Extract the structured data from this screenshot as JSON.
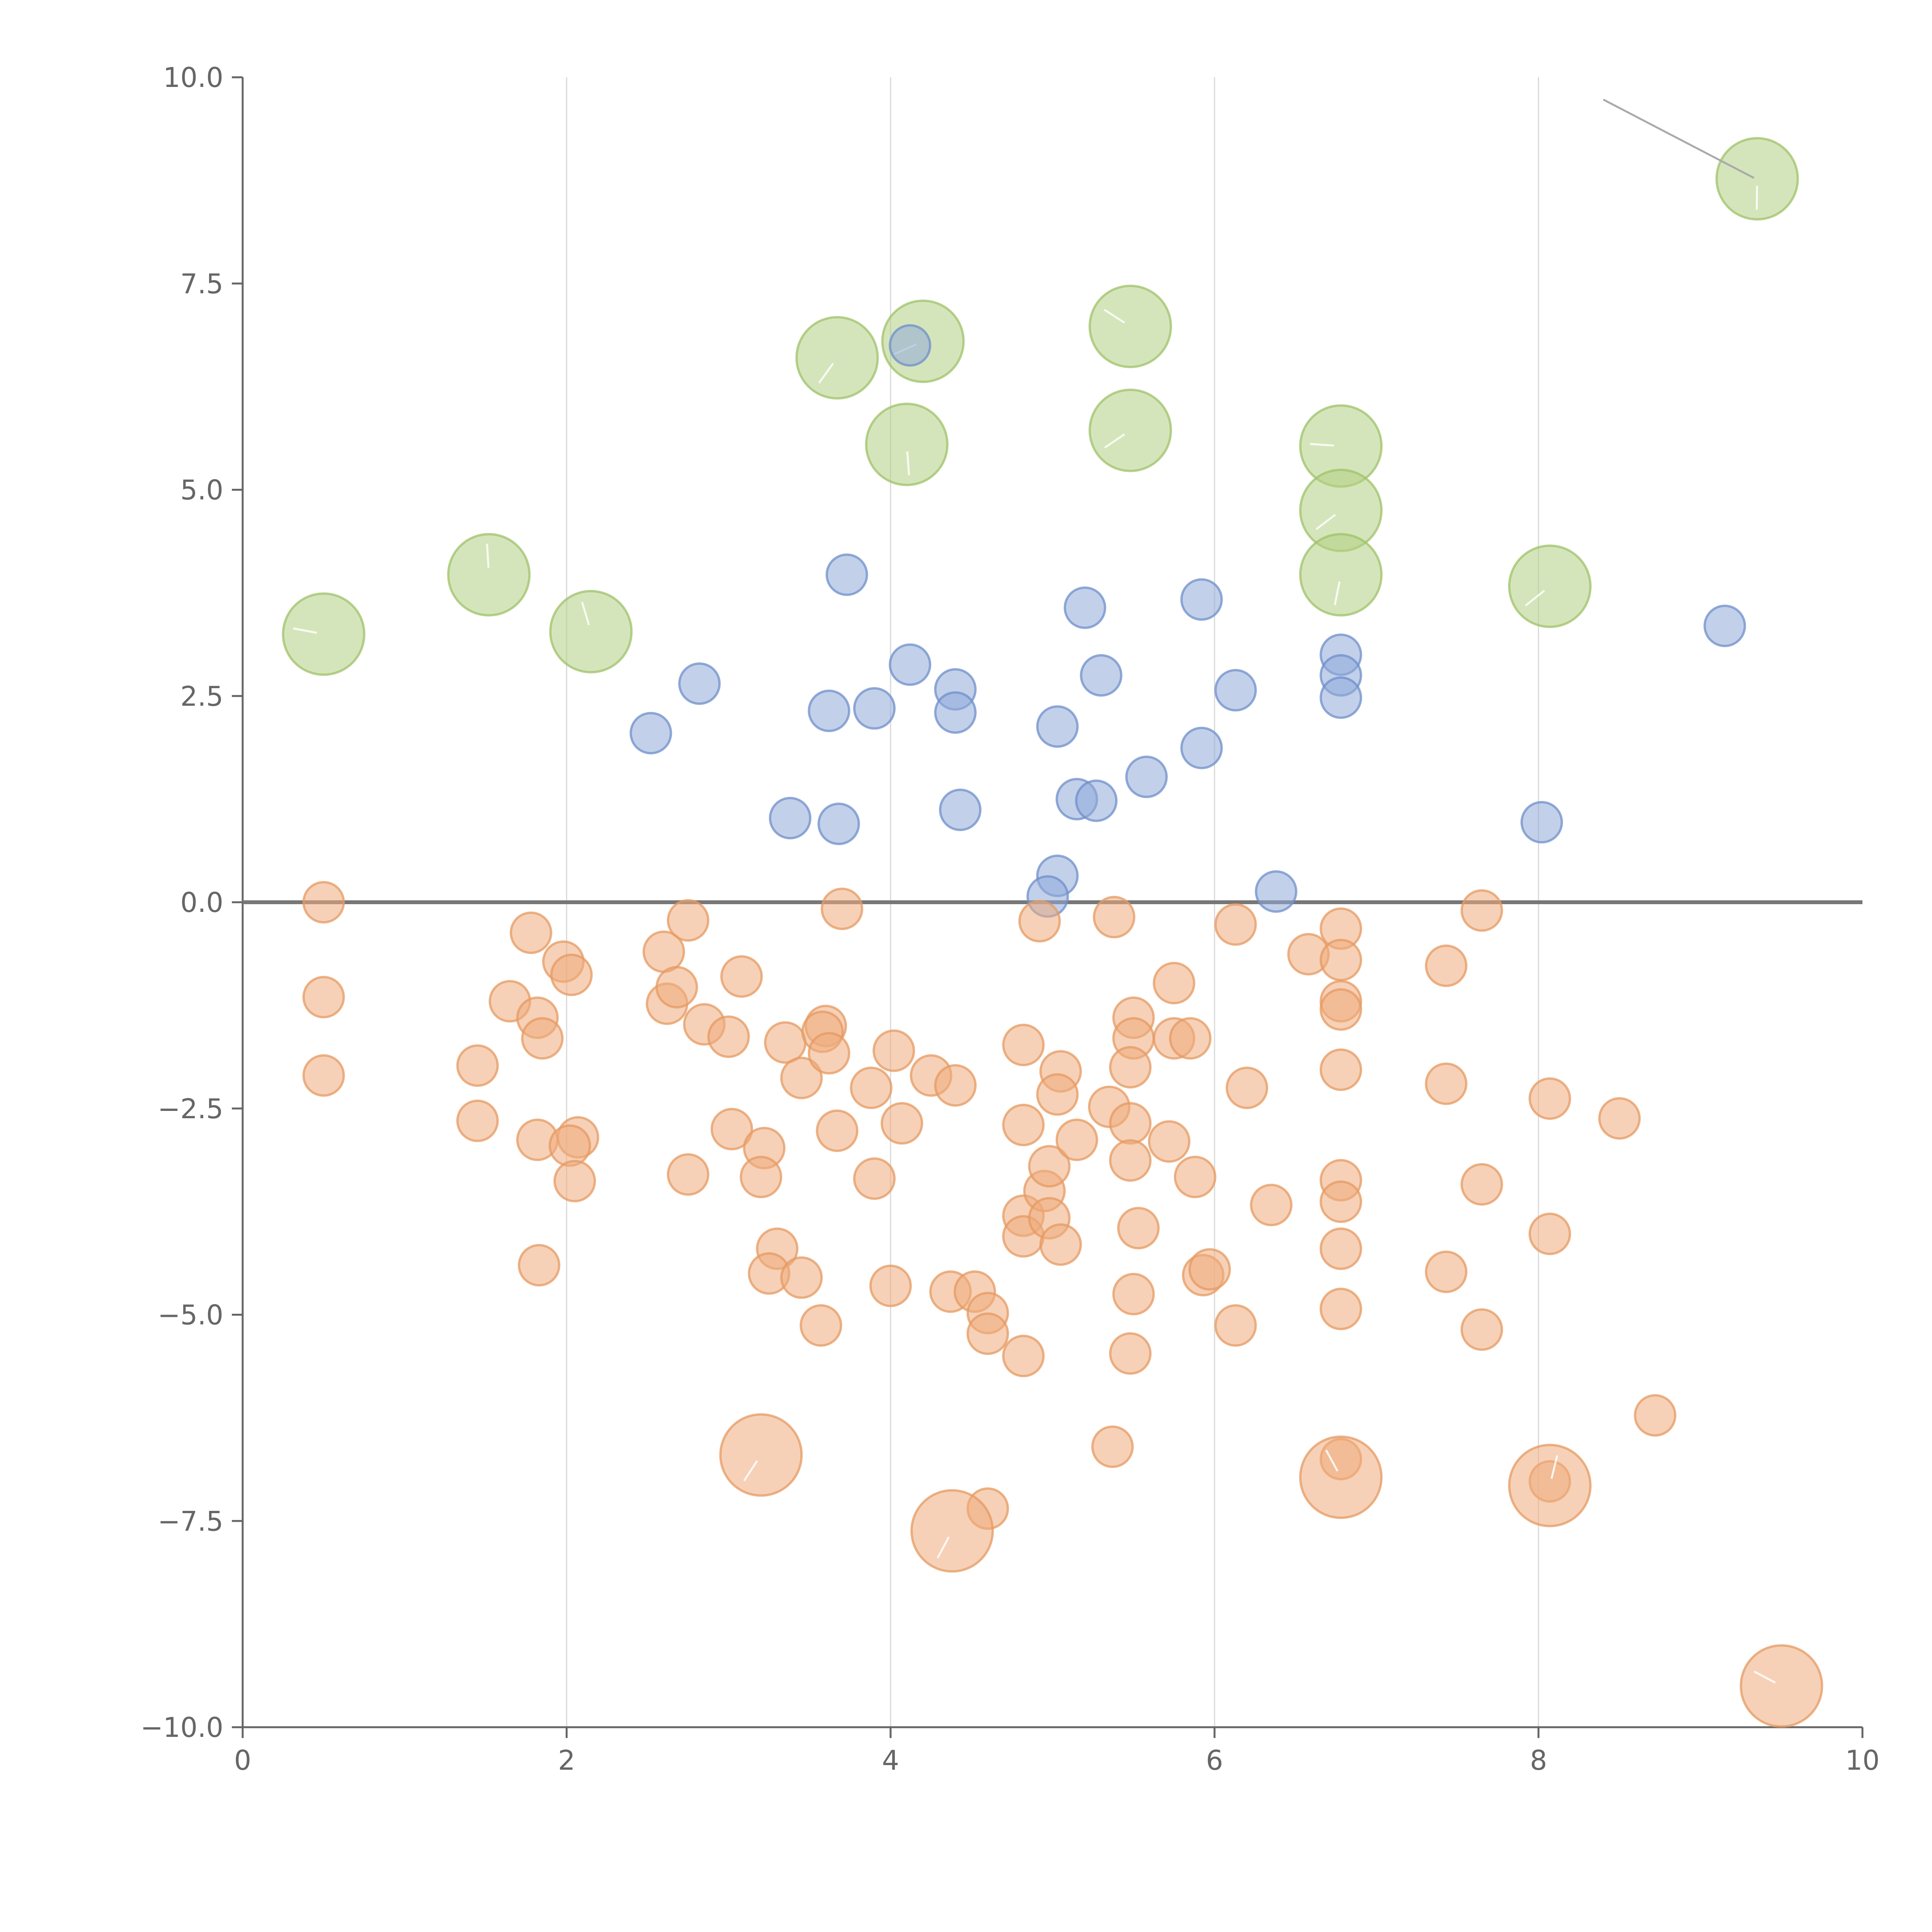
{
  "chart_data": {
    "type": "scatter",
    "title": "",
    "xlabel": "",
    "ylabel": "",
    "xlim": [
      0,
      10
    ],
    "ylim": [
      -10,
      10
    ],
    "x_ticks": [
      0,
      2,
      4,
      6,
      8,
      10
    ],
    "x_tick_labels": [
      "0",
      "2",
      "4",
      "6",
      "8",
      "10"
    ],
    "y_ticks": [
      10,
      7.5,
      5,
      2.5,
      0,
      -2.5,
      -5,
      -7.5,
      -10
    ],
    "y_tick_labels": [
      "10.0",
      "7.5",
      "5.0",
      "2.5",
      "0.0",
      "−2.5",
      "−5.0",
      "−7.5",
      "−10.0"
    ],
    "grid": "vertical",
    "reference_line_y": 0,
    "series": [
      {
        "name": "green",
        "color": "#b3cf83",
        "edge_color": "#9fc26a",
        "size": "large",
        "points": [
          [
            0.5,
            3.25
          ],
          [
            1.52,
            3.97
          ],
          [
            2.15,
            3.28
          ],
          [
            3.67,
            6.6
          ],
          [
            4.2,
            6.8
          ],
          [
            4.1,
            5.55
          ],
          [
            5.48,
            6.98
          ],
          [
            5.48,
            5.72
          ],
          [
            6.78,
            5.53
          ],
          [
            6.78,
            4.75
          ],
          [
            6.78,
            3.97
          ],
          [
            8.07,
            3.83
          ],
          [
            9.35,
            8.77
          ]
        ]
      },
      {
        "name": "blue",
        "color": "#8faad9",
        "edge_color": "#6f8fc9",
        "size": "small",
        "points": [
          [
            2.52,
            2.05
          ],
          [
            2.82,
            2.65
          ],
          [
            3.73,
            3.97
          ],
          [
            3.62,
            2.32
          ],
          [
            3.9,
            2.35
          ],
          [
            4.12,
            2.88
          ],
          [
            4.4,
            2.58
          ],
          [
            4.4,
            2.3
          ],
          [
            4.43,
            1.12
          ],
          [
            3.38,
            1.02
          ],
          [
            3.68,
            0.95
          ],
          [
            5.2,
            3.57
          ],
          [
            5.3,
            2.75
          ],
          [
            5.03,
            2.13
          ],
          [
            5.92,
            3.67
          ],
          [
            6.13,
            2.57
          ],
          [
            5.92,
            1.87
          ],
          [
            5.58,
            1.52
          ],
          [
            5.15,
            1.25
          ],
          [
            5.27,
            1.23
          ],
          [
            6.78,
            3.0
          ],
          [
            6.78,
            2.75
          ],
          [
            6.78,
            2.48
          ],
          [
            5.03,
            0.32
          ],
          [
            4.97,
            0.07
          ],
          [
            6.38,
            0.13
          ],
          [
            8.02,
            0.97
          ],
          [
            9.15,
            3.35
          ],
          [
            4.12,
            6.75
          ]
        ]
      },
      {
        "name": "orange",
        "color": "#eeab7b",
        "edge_color": "#e69a62",
        "size": "small",
        "points": [
          [
            0.5,
            0.0
          ],
          [
            0.5,
            -1.15
          ],
          [
            0.5,
            -2.1
          ],
          [
            1.45,
            -1.98
          ],
          [
            1.45,
            -2.65
          ],
          [
            1.78,
            -0.37
          ],
          [
            1.65,
            -1.2
          ],
          [
            1.82,
            -1.4
          ],
          [
            1.85,
            -1.65
          ],
          [
            1.82,
            -2.88
          ],
          [
            1.83,
            -4.4
          ],
          [
            1.98,
            -0.72
          ],
          [
            2.03,
            -0.88
          ],
          [
            2.07,
            -2.85
          ],
          [
            2.02,
            -2.95
          ],
          [
            2.05,
            -3.38
          ],
          [
            2.6,
            -0.6
          ],
          [
            2.62,
            -1.23
          ],
          [
            2.68,
            -1.03
          ],
          [
            2.75,
            -0.22
          ],
          [
            2.85,
            -1.48
          ],
          [
            2.75,
            -3.3
          ],
          [
            3.08,
            -0.9
          ],
          [
            3.0,
            -1.63
          ],
          [
            3.02,
            -2.75
          ],
          [
            3.22,
            -2.98
          ],
          [
            3.2,
            -3.33
          ],
          [
            3.35,
            -1.7
          ],
          [
            3.45,
            -2.13
          ],
          [
            3.3,
            -4.2
          ],
          [
            3.25,
            -4.5
          ],
          [
            3.45,
            -4.55
          ],
          [
            3.6,
            -1.5
          ],
          [
            3.58,
            -1.57
          ],
          [
            3.62,
            -1.83
          ],
          [
            3.67,
            -2.77
          ],
          [
            3.7,
            -0.08
          ],
          [
            3.57,
            -5.13
          ],
          [
            3.88,
            -2.25
          ],
          [
            3.9,
            -3.35
          ],
          [
            4.02,
            -1.8
          ],
          [
            4.07,
            -2.68
          ],
          [
            4.0,
            -4.65
          ],
          [
            4.25,
            -2.1
          ],
          [
            4.4,
            -2.22
          ],
          [
            4.37,
            -4.72
          ],
          [
            4.52,
            -4.72
          ],
          [
            4.6,
            -4.98
          ],
          [
            4.6,
            -5.23
          ],
          [
            4.6,
            -7.35
          ],
          [
            4.82,
            -1.73
          ],
          [
            4.82,
            -2.7
          ],
          [
            4.82,
            -3.8
          ],
          [
            4.82,
            -4.05
          ],
          [
            4.82,
            -5.5
          ],
          [
            4.92,
            -0.23
          ],
          [
            4.95,
            -3.5
          ],
          [
            4.98,
            -3.2
          ],
          [
            4.98,
            -3.83
          ],
          [
            5.05,
            -2.05
          ],
          [
            5.03,
            -2.33
          ],
          [
            5.05,
            -4.15
          ],
          [
            5.15,
            -2.88
          ],
          [
            5.35,
            -2.48
          ],
          [
            5.38,
            -0.18
          ],
          [
            5.5,
            -1.4
          ],
          [
            5.5,
            -1.65
          ],
          [
            5.48,
            -2.0
          ],
          [
            5.48,
            -2.68
          ],
          [
            5.48,
            -3.13
          ],
          [
            5.53,
            -3.95
          ],
          [
            5.5,
            -4.75
          ],
          [
            5.48,
            -5.47
          ],
          [
            5.37,
            -6.6
          ],
          [
            5.72,
            -2.9
          ],
          [
            5.75,
            -0.98
          ],
          [
            5.75,
            -1.65
          ],
          [
            5.85,
            -1.65
          ],
          [
            5.88,
            -3.33
          ],
          [
            5.93,
            -4.52
          ],
          [
            5.97,
            -4.45
          ],
          [
            6.13,
            -0.27
          ],
          [
            6.2,
            -2.25
          ],
          [
            6.13,
            -5.13
          ],
          [
            6.35,
            -3.67
          ],
          [
            6.58,
            -0.63
          ],
          [
            6.78,
            -0.32
          ],
          [
            6.78,
            -0.7
          ],
          [
            6.78,
            -1.2
          ],
          [
            6.78,
            -1.3
          ],
          [
            6.78,
            -2.03
          ],
          [
            6.78,
            -3.37
          ],
          [
            6.78,
            -3.63
          ],
          [
            6.78,
            -4.2
          ],
          [
            6.78,
            -4.93
          ],
          [
            6.78,
            -6.75
          ],
          [
            7.43,
            -0.77
          ],
          [
            7.43,
            -2.2
          ],
          [
            7.43,
            -4.48
          ],
          [
            7.65,
            -0.1
          ],
          [
            7.65,
            -3.42
          ],
          [
            7.65,
            -5.18
          ],
          [
            8.07,
            -2.38
          ],
          [
            8.07,
            -4.02
          ],
          [
            8.07,
            -7.02
          ],
          [
            8.5,
            -2.62
          ],
          [
            8.72,
            -6.22
          ]
        ]
      },
      {
        "name": "orange-large",
        "color": "#eeab7b",
        "edge_color": "#e69a62",
        "size": "large",
        "points": [
          [
            3.2,
            -6.7
          ],
          [
            4.38,
            -7.62
          ],
          [
            6.78,
            -6.97
          ],
          [
            8.07,
            -7.07
          ],
          [
            9.5,
            -9.5
          ]
        ]
      }
    ],
    "annotations": [
      {
        "from": [
          8.4,
          9.73
        ],
        "to": [
          9.33,
          8.78
        ],
        "style": "dark"
      }
    ]
  }
}
